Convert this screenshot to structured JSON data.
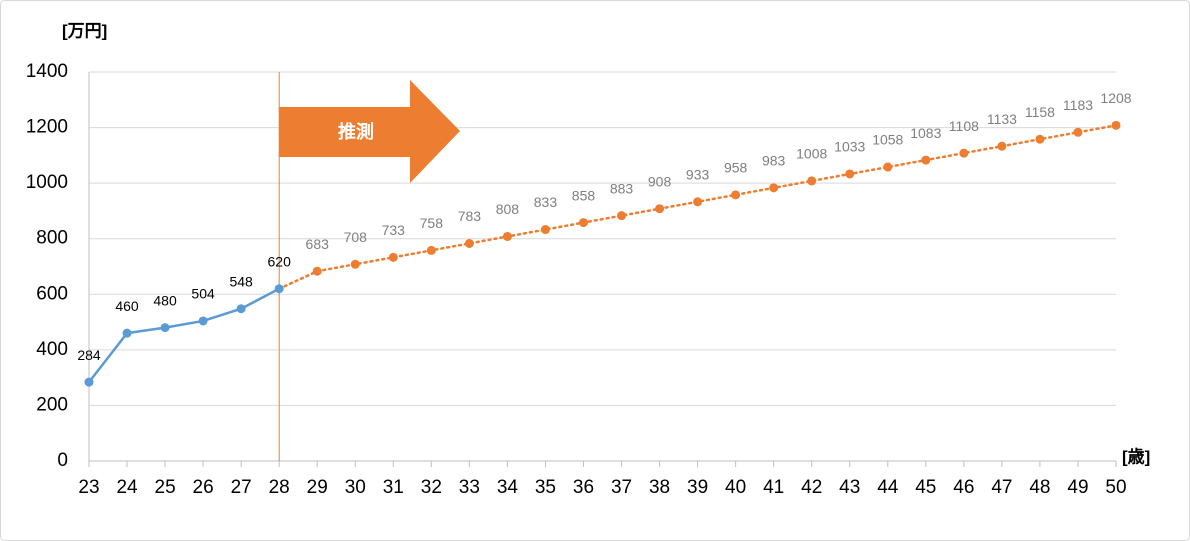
{
  "chart_data": {
    "type": "line",
    "y_unit": "[万円]",
    "x_unit": "[歳]",
    "x": [
      23,
      24,
      25,
      26,
      27,
      28,
      29,
      30,
      31,
      32,
      33,
      34,
      35,
      36,
      37,
      38,
      39,
      40,
      41,
      42,
      43,
      44,
      45,
      46,
      47,
      48,
      49,
      50
    ],
    "xlim": [
      23,
      50
    ],
    "ylim": [
      0,
      1400
    ],
    "yticks": [
      0,
      200,
      400,
      600,
      800,
      1000,
      1200,
      1400
    ],
    "grid": true,
    "annotation": {
      "text": "推測",
      "x": 28,
      "color": "#ed7d31"
    },
    "series": [
      {
        "color": "#5b9bd5",
        "style": "solid",
        "label_color": "#000000",
        "values": [
          284,
          460,
          480,
          504,
          548,
          620,
          null,
          null,
          null,
          null,
          null,
          null,
          null,
          null,
          null,
          null,
          null,
          null,
          null,
          null,
          null,
          null,
          null,
          null,
          null,
          null,
          null,
          null
        ]
      },
      {
        "color": "#ed7d31",
        "style": "dotted",
        "label_color": "#7f7f7f",
        "values": [
          null,
          null,
          null,
          null,
          null,
          620,
          683,
          708,
          733,
          758,
          783,
          808,
          833,
          858,
          883,
          908,
          933,
          958,
          983,
          1008,
          1033,
          1058,
          1083,
          1108,
          1133,
          1158,
          1183,
          1208
        ]
      }
    ]
  }
}
